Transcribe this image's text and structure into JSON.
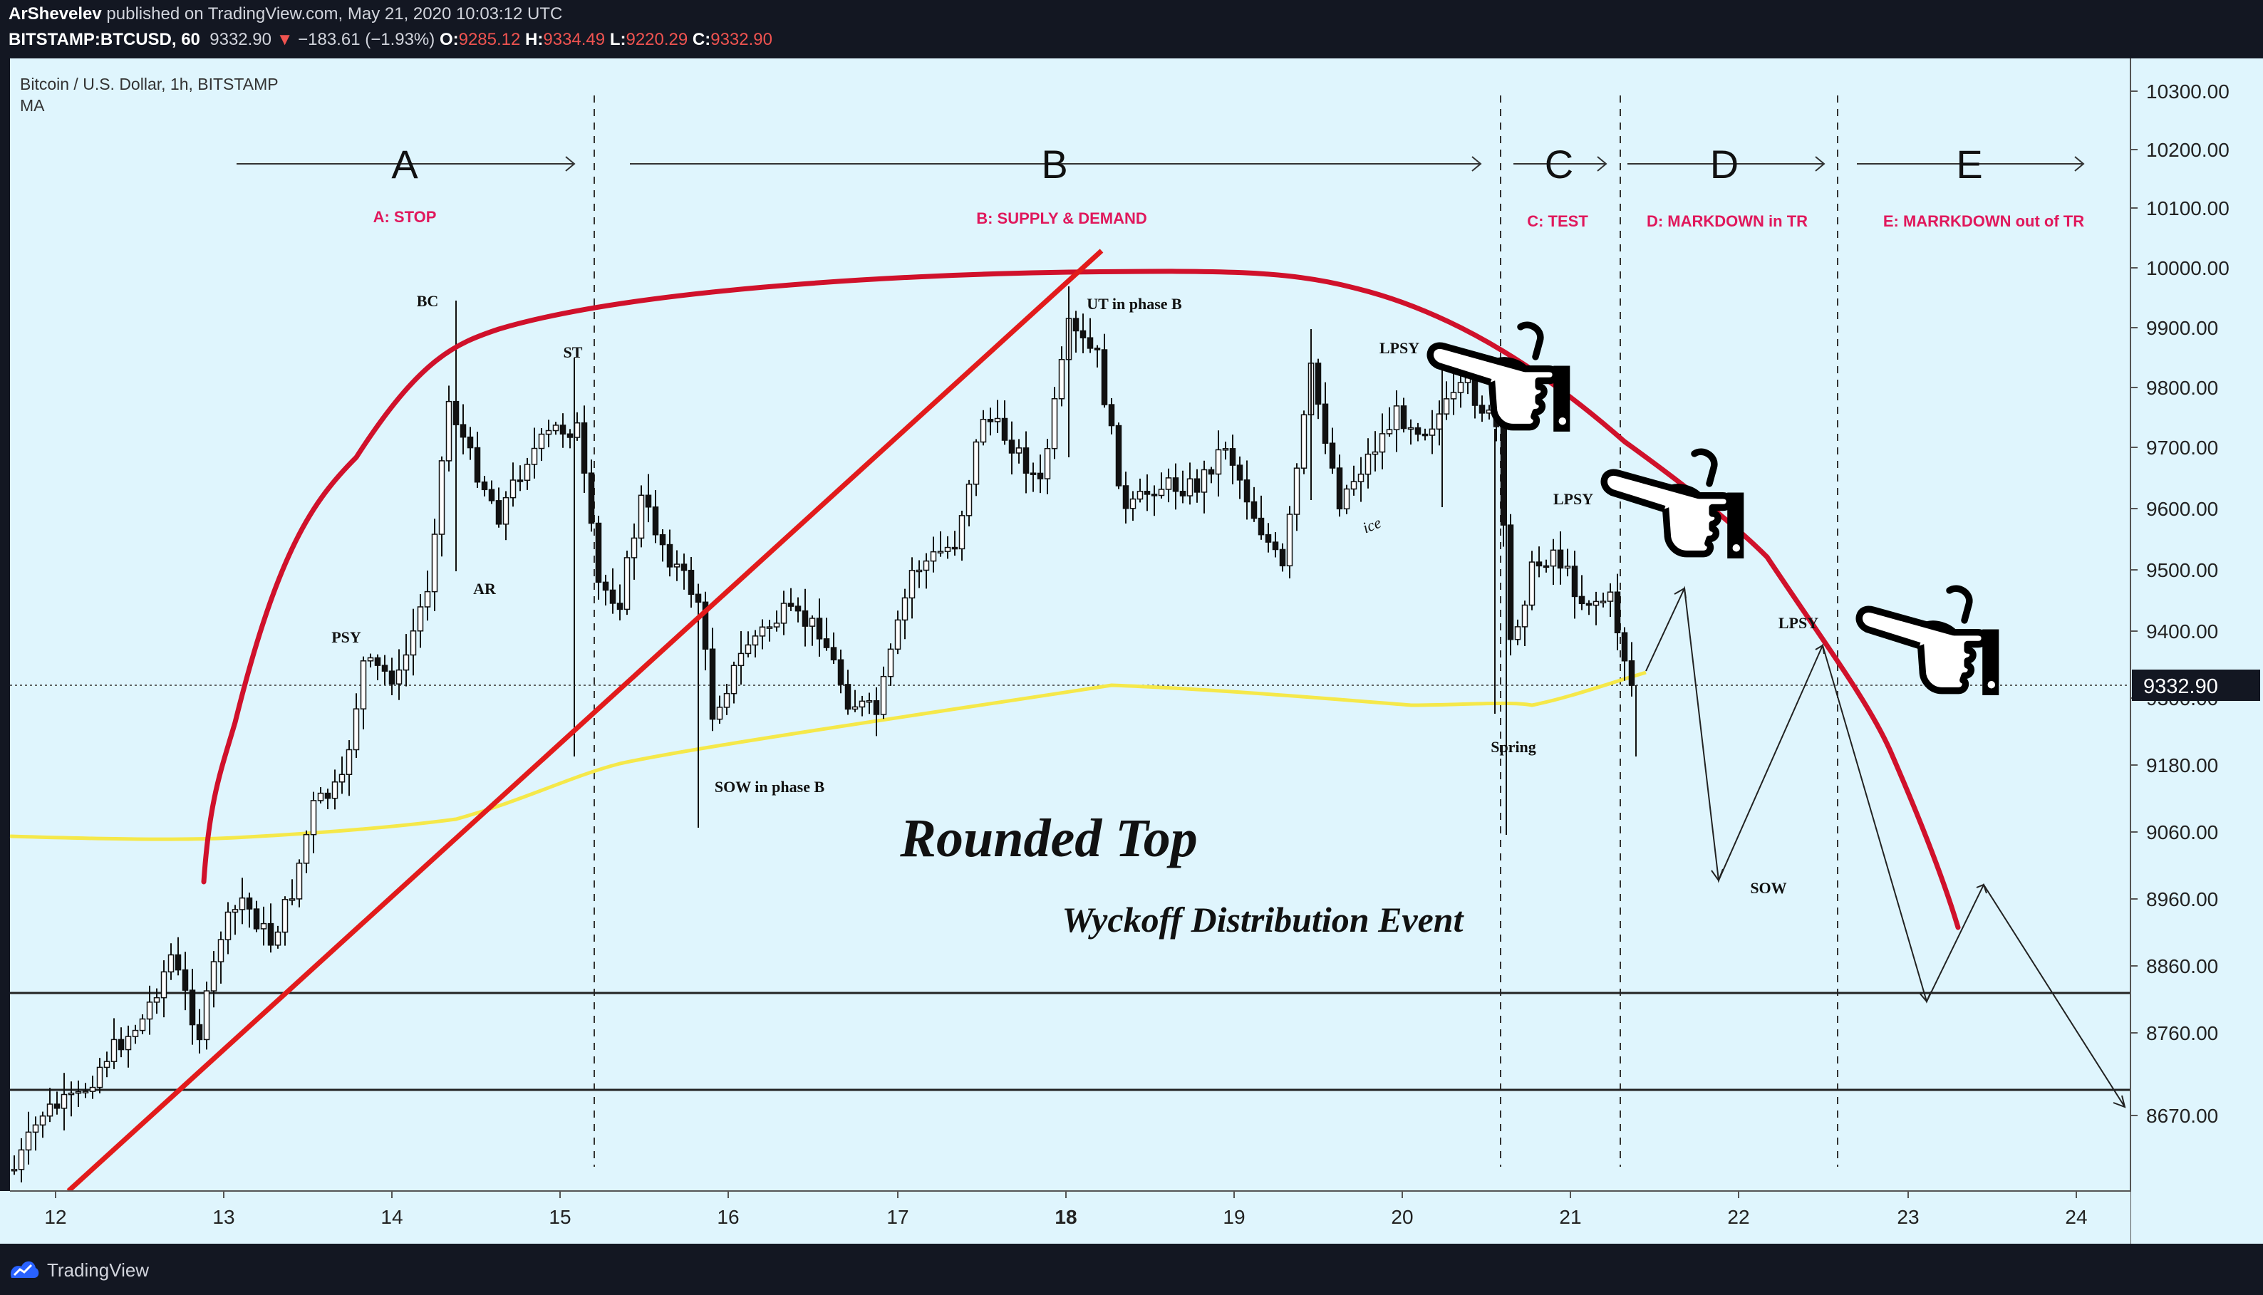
{
  "header": {
    "author": "ArShevelev",
    "published_text": "published on TradingView.com, May 21, 2020 10:03:12 UTC",
    "symbol": "BITSTAMP:BTCUSD, 60",
    "last": "9332.90",
    "change": "−183.61 (−1.93%)",
    "o_label": "O:",
    "o": "9285.12",
    "h_label": "H:",
    "h": "9334.49",
    "l_label": "L:",
    "l": "9220.29",
    "c_label": "C:",
    "c": "9332.90",
    "down_arrow": "▼"
  },
  "legend": {
    "title": "Bitcoin / U.S. Dollar, 1h, BITSTAMP",
    "indicator": "MA"
  },
  "footer": {
    "brand": "TradingView"
  },
  "colors": {
    "background": "#dff5fd",
    "rounded_top": "#d0112b",
    "trendline": "#e21b1b",
    "ma": "#f5e84a",
    "phase_label": "#e0185c",
    "price_tag": "#131722"
  },
  "chart_data": {
    "type": "candlestick",
    "x_axis_ticks": [
      "12",
      "13",
      "14",
      "15",
      "16",
      "17",
      "18",
      "19",
      "20",
      "21",
      "22",
      "23",
      "24"
    ],
    "y_axis_ticks": [
      "10300.00",
      "10200.00",
      "10100.00",
      "10000.00",
      "9900.00",
      "9800.00",
      "9700.00",
      "9600.00",
      "9500.00",
      "9400.00",
      "9300.00",
      "9180.00",
      "9060.00",
      "8960.00",
      "8860.00",
      "8760.00",
      "8670.00"
    ],
    "current_price": "9332.90",
    "phases": [
      {
        "letter": "A",
        "name": "A: STOP"
      },
      {
        "letter": "B",
        "name": "B: SUPPLY & DEMAND"
      },
      {
        "letter": "C",
        "name": "C: TEST"
      },
      {
        "letter": "D",
        "name": "D: MARKDOWN in TR"
      },
      {
        "letter": "E",
        "name": "E: MARRKDOWN out of TR"
      }
    ],
    "event_labels": [
      "BC",
      "ST",
      "PSY",
      "AR",
      "UT in phase B",
      "LPSY",
      "LPSY",
      "LPSY",
      "SOW in phase B",
      "Spring",
      "SOW",
      "ice"
    ],
    "title": "Rounded Top",
    "subtitle": "Wyckoff Distribution Event",
    "horizontal_levels": [
      8865,
      8725
    ],
    "ma_values": [
      9090,
      9088,
      9095,
      9110,
      9160,
      9230,
      9280,
      9320,
      9335,
      9320,
      9305,
      9300,
      9310,
      9340
    ]
  }
}
